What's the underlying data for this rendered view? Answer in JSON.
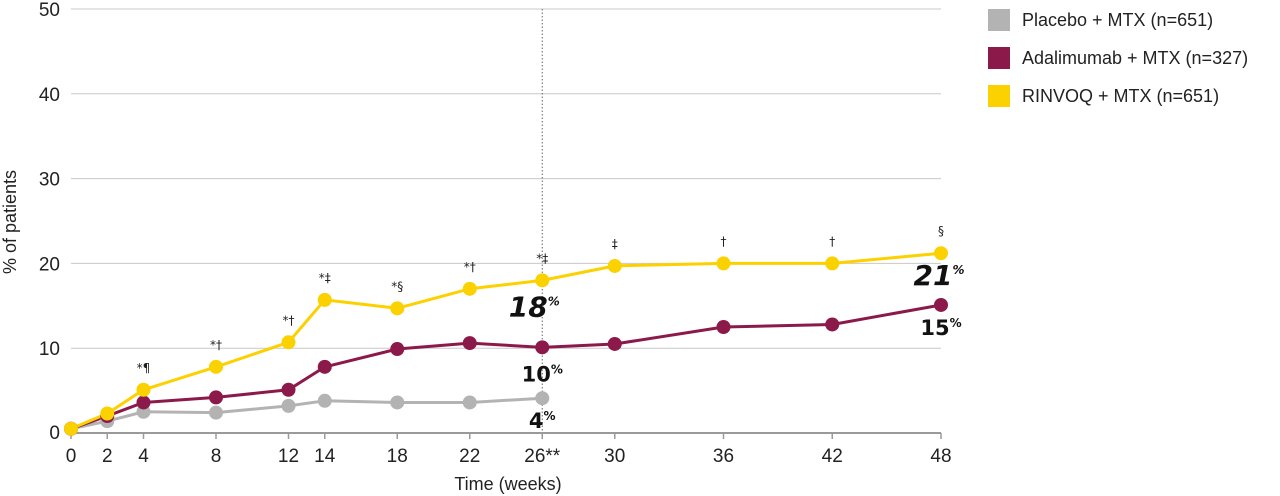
{
  "chart_data": {
    "type": "line",
    "xlabel": "Time (weeks)",
    "ylabel": "% of patients",
    "ylim": [
      0,
      50
    ],
    "yticks": [
      0,
      10,
      20,
      30,
      40,
      50
    ],
    "xtick_labels": [
      "0",
      "2",
      "4",
      "8",
      "12",
      "14",
      "18",
      "22",
      "26**",
      "30",
      "36",
      "42",
      "48"
    ],
    "xtick_values": [
      0,
      2,
      4,
      8,
      12,
      14,
      18,
      22,
      26,
      30,
      36,
      42,
      48
    ],
    "xlim": [
      0,
      48
    ],
    "reference_line_x": 26,
    "grid": "horizontal",
    "legend_placement": "top-right",
    "series": [
      {
        "name": "Placebo + MTX (n=651)",
        "color": "#b3b3b3",
        "x": [
          0,
          2,
          4,
          8,
          12,
          14,
          18,
          22,
          26
        ],
        "y": [
          0.5,
          1.4,
          2.5,
          2.4,
          3.2,
          3.8,
          3.6,
          3.6,
          4.1
        ]
      },
      {
        "name": "Adalimumab + MTX (n=327)",
        "color": "#8b1a4b",
        "x": [
          0,
          2,
          4,
          8,
          12,
          14,
          18,
          22,
          26,
          30,
          36,
          42,
          48
        ],
        "y": [
          0.5,
          2.0,
          3.6,
          4.2,
          5.1,
          7.8,
          9.9,
          10.6,
          10.1,
          10.5,
          12.5,
          12.8,
          15.1
        ]
      },
      {
        "name": "RINVOQ + MTX (n=651)",
        "color": "#fcd100",
        "x": [
          0,
          2,
          4,
          8,
          12,
          14,
          18,
          22,
          26,
          30,
          36,
          42,
          48
        ],
        "y": [
          0.5,
          2.3,
          5.1,
          7.8,
          10.7,
          15.7,
          14.7,
          17.0,
          18.0,
          19.7,
          20.0,
          20.0,
          21.2
        ]
      }
    ],
    "significance_markers": [
      {
        "x": 4,
        "label": "*¶"
      },
      {
        "x": 8,
        "label": "*†"
      },
      {
        "x": 12,
        "label": "*†"
      },
      {
        "x": 14,
        "label": "*‡"
      },
      {
        "x": 18,
        "label": "*§"
      },
      {
        "x": 22,
        "label": "*†"
      },
      {
        "x": 26,
        "label": "*‡"
      },
      {
        "x": 30,
        "label": "‡"
      },
      {
        "x": 36,
        "label": "†"
      },
      {
        "x": 42,
        "label": "†"
      },
      {
        "x": 48,
        "label": "§"
      }
    ],
    "callouts": [
      {
        "series": 2,
        "x": 26,
        "value": "18",
        "unit": "%",
        "style": "italic"
      },
      {
        "series": 2,
        "x": 48,
        "value": "21",
        "unit": "%",
        "style": "italic"
      },
      {
        "series": 1,
        "x": 26,
        "value": "10",
        "unit": "%",
        "style": "bold"
      },
      {
        "series": 1,
        "x": 48,
        "value": "15",
        "unit": "%",
        "style": "bold"
      },
      {
        "series": 0,
        "x": 26,
        "value": "4",
        "unit": "%",
        "style": "bold"
      }
    ]
  }
}
